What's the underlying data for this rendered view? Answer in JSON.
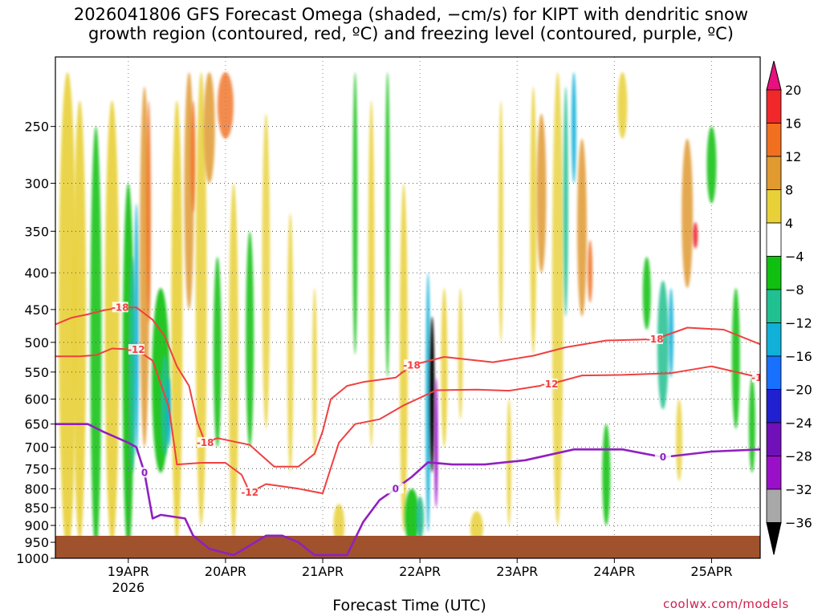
{
  "title_line1": "2026041806 GFS Forecast Omega (shaded, −cm/s) for KIPT with dendritic snow",
  "title_line2": "growth region (contoured, red, ºC) and freezing level (contoured, purple, ºC)",
  "xlabel": "Forecast Time (UTC)",
  "credit": "coolwx.com/models",
  "chart_data": {
    "type": "heatmap",
    "y_axis": {
      "label": "",
      "scale": "log-pressure",
      "inverted": true,
      "range_hPa": [
        200,
        1000
      ],
      "ticks": [
        "250",
        "300",
        "350",
        "400",
        "450",
        "500",
        "550",
        "600",
        "650",
        "700",
        "750",
        "800",
        "850",
        "900",
        "950",
        "1000"
      ]
    },
    "x_axis": {
      "ticks": [
        "19APR",
        "20APR",
        "21APR",
        "22APR",
        "23APR",
        "24APR",
        "25APR"
      ],
      "year_label": "2026",
      "range_hours": [
        0,
        174
      ]
    },
    "colorbar": {
      "labels": [
        "20",
        "16",
        "12",
        "8",
        "4",
        "−4",
        "−8",
        "−12",
        "−16",
        "−20",
        "−24",
        "−28",
        "−32",
        "−36"
      ],
      "colors": [
        "#e8107f",
        "#f0282a",
        "#f07020",
        "#e09a30",
        "#e8d038",
        "#ffffff",
        "#10c010",
        "#20c090",
        "#10b0d8",
        "#1870ff",
        "#2020d0",
        "#7010b8",
        "#9a10c8",
        "#a8a8a8",
        "#000000"
      ]
    },
    "series": [
      {
        "name": "-18",
        "color": "#f04040",
        "points": [
          [
            0,
            472
          ],
          [
            4,
            462
          ],
          [
            8,
            457
          ],
          [
            12,
            451
          ],
          [
            16,
            447
          ],
          [
            20,
            447
          ],
          [
            24,
            465
          ],
          [
            27,
            490
          ],
          [
            30,
            540
          ],
          [
            33,
            575
          ],
          [
            35,
            645
          ],
          [
            37,
            690
          ],
          [
            40,
            680
          ],
          [
            48,
            695
          ],
          [
            54,
            745
          ],
          [
            60,
            745
          ],
          [
            64,
            715
          ],
          [
            66,
            665
          ],
          [
            68,
            600
          ],
          [
            72,
            575
          ],
          [
            76,
            568
          ],
          [
            84,
            560
          ],
          [
            88,
            538
          ],
          [
            96,
            524
          ],
          [
            108,
            533
          ],
          [
            118,
            522
          ],
          [
            126,
            508
          ],
          [
            136,
            497
          ],
          [
            148,
            495
          ],
          [
            156,
            477
          ],
          [
            165,
            480
          ],
          [
            174,
            503
          ]
        ]
      },
      {
        "name": "-12",
        "color": "#f04040",
        "points": [
          [
            0,
            523
          ],
          [
            6,
            523
          ],
          [
            10,
            521
          ],
          [
            14,
            510
          ],
          [
            20,
            512
          ],
          [
            24,
            530
          ],
          [
            28,
            615
          ],
          [
            30,
            740
          ],
          [
            36,
            736
          ],
          [
            42,
            736
          ],
          [
            46,
            765
          ],
          [
            48,
            810
          ],
          [
            52,
            788
          ],
          [
            60,
            800
          ],
          [
            66,
            812
          ],
          [
            70,
            690
          ],
          [
            74,
            650
          ],
          [
            80,
            640
          ],
          [
            86,
            612
          ],
          [
            94,
            583
          ],
          [
            104,
            582
          ],
          [
            112,
            584
          ],
          [
            122,
            572
          ],
          [
            130,
            556
          ],
          [
            140,
            555
          ],
          [
            152,
            552
          ],
          [
            162,
            540
          ],
          [
            174,
            560
          ]
        ]
      },
      {
        "name": "0",
        "color": "#9020c0",
        "points": [
          [
            0,
            650
          ],
          [
            8,
            650
          ],
          [
            12,
            667
          ],
          [
            18,
            690
          ],
          [
            20,
            700
          ],
          [
            22,
            760
          ],
          [
            24,
            880
          ],
          [
            26,
            870
          ],
          [
            32,
            880
          ],
          [
            34,
            930
          ],
          [
            38,
            970
          ],
          [
            44,
            990
          ],
          [
            48,
            960
          ],
          [
            52,
            930
          ],
          [
            56,
            930
          ],
          [
            60,
            950
          ],
          [
            64,
            990
          ],
          [
            70,
            990
          ],
          [
            72,
            990
          ],
          [
            76,
            890
          ],
          [
            80,
            830
          ],
          [
            84,
            800
          ],
          [
            88,
            770
          ],
          [
            92,
            735
          ],
          [
            98,
            740
          ],
          [
            106,
            740
          ],
          [
            116,
            730
          ],
          [
            128,
            705
          ],
          [
            140,
            705
          ],
          [
            150,
            723
          ],
          [
            162,
            710
          ],
          [
            174,
            705
          ]
        ]
      }
    ]
  }
}
